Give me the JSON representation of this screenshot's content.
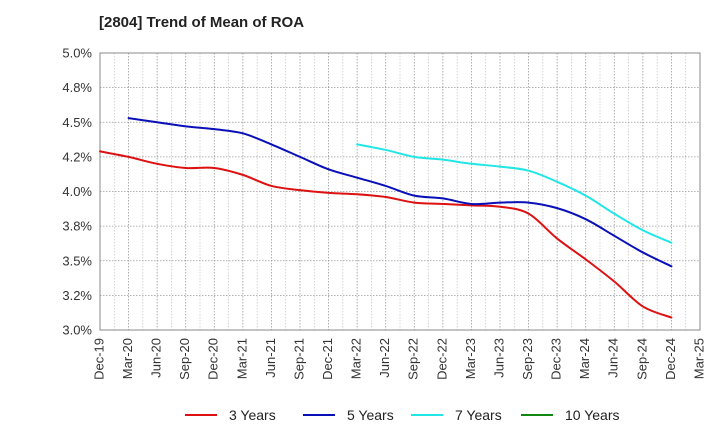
{
  "chart_data": {
    "type": "line",
    "title": "[2804]  Trend of Mean of ROA",
    "xlabel": "",
    "ylabel": "",
    "ylim": [
      3.0,
      5.0
    ],
    "y_ticks": [
      3.0,
      3.25,
      3.5,
      3.75,
      4.0,
      4.25,
      4.5,
      4.75,
      5.0
    ],
    "y_tick_labels": [
      "3.0%",
      "3.2%",
      "3.5%",
      "3.8%",
      "4.0%",
      "4.2%",
      "4.5%",
      "4.8%",
      "5.0%"
    ],
    "x": [
      "Dec-19",
      "Mar-20",
      "Jun-20",
      "Sep-20",
      "Dec-20",
      "Mar-21",
      "Jun-21",
      "Sep-21",
      "Dec-21",
      "Mar-22",
      "Jun-22",
      "Sep-22",
      "Dec-22",
      "Mar-23",
      "Jun-23",
      "Sep-23",
      "Dec-23",
      "Mar-24",
      "Jun-24",
      "Sep-24",
      "Dec-24",
      "Mar-25"
    ],
    "grid": true,
    "legend_position": "bottom",
    "series": [
      {
        "name": "3 Years",
        "color": "#dd1111",
        "values": [
          4.29,
          4.25,
          4.2,
          4.17,
          4.17,
          4.12,
          4.04,
          4.01,
          3.99,
          3.98,
          3.96,
          3.92,
          3.91,
          3.9,
          3.89,
          3.84,
          3.66,
          3.51,
          3.35,
          3.17,
          3.09,
          null
        ]
      },
      {
        "name": "5 Years",
        "color": "#0a10b8",
        "values": [
          null,
          4.53,
          4.5,
          4.47,
          4.45,
          4.42,
          4.34,
          4.25,
          4.16,
          4.1,
          4.04,
          3.97,
          3.95,
          3.91,
          3.92,
          3.92,
          3.88,
          3.8,
          3.68,
          3.56,
          3.46,
          null
        ]
      },
      {
        "name": "7 Years",
        "color": "#22e5e5",
        "values": [
          null,
          null,
          null,
          null,
          null,
          null,
          null,
          null,
          null,
          4.34,
          4.3,
          4.25,
          4.23,
          4.2,
          4.18,
          4.15,
          4.07,
          3.97,
          3.84,
          3.72,
          3.63,
          null
        ]
      },
      {
        "name": "10 Years",
        "color": "#118811",
        "values": [
          null,
          null,
          null,
          null,
          null,
          null,
          null,
          null,
          null,
          null,
          null,
          null,
          null,
          null,
          null,
          null,
          null,
          null,
          null,
          null,
          null,
          null
        ]
      }
    ]
  }
}
